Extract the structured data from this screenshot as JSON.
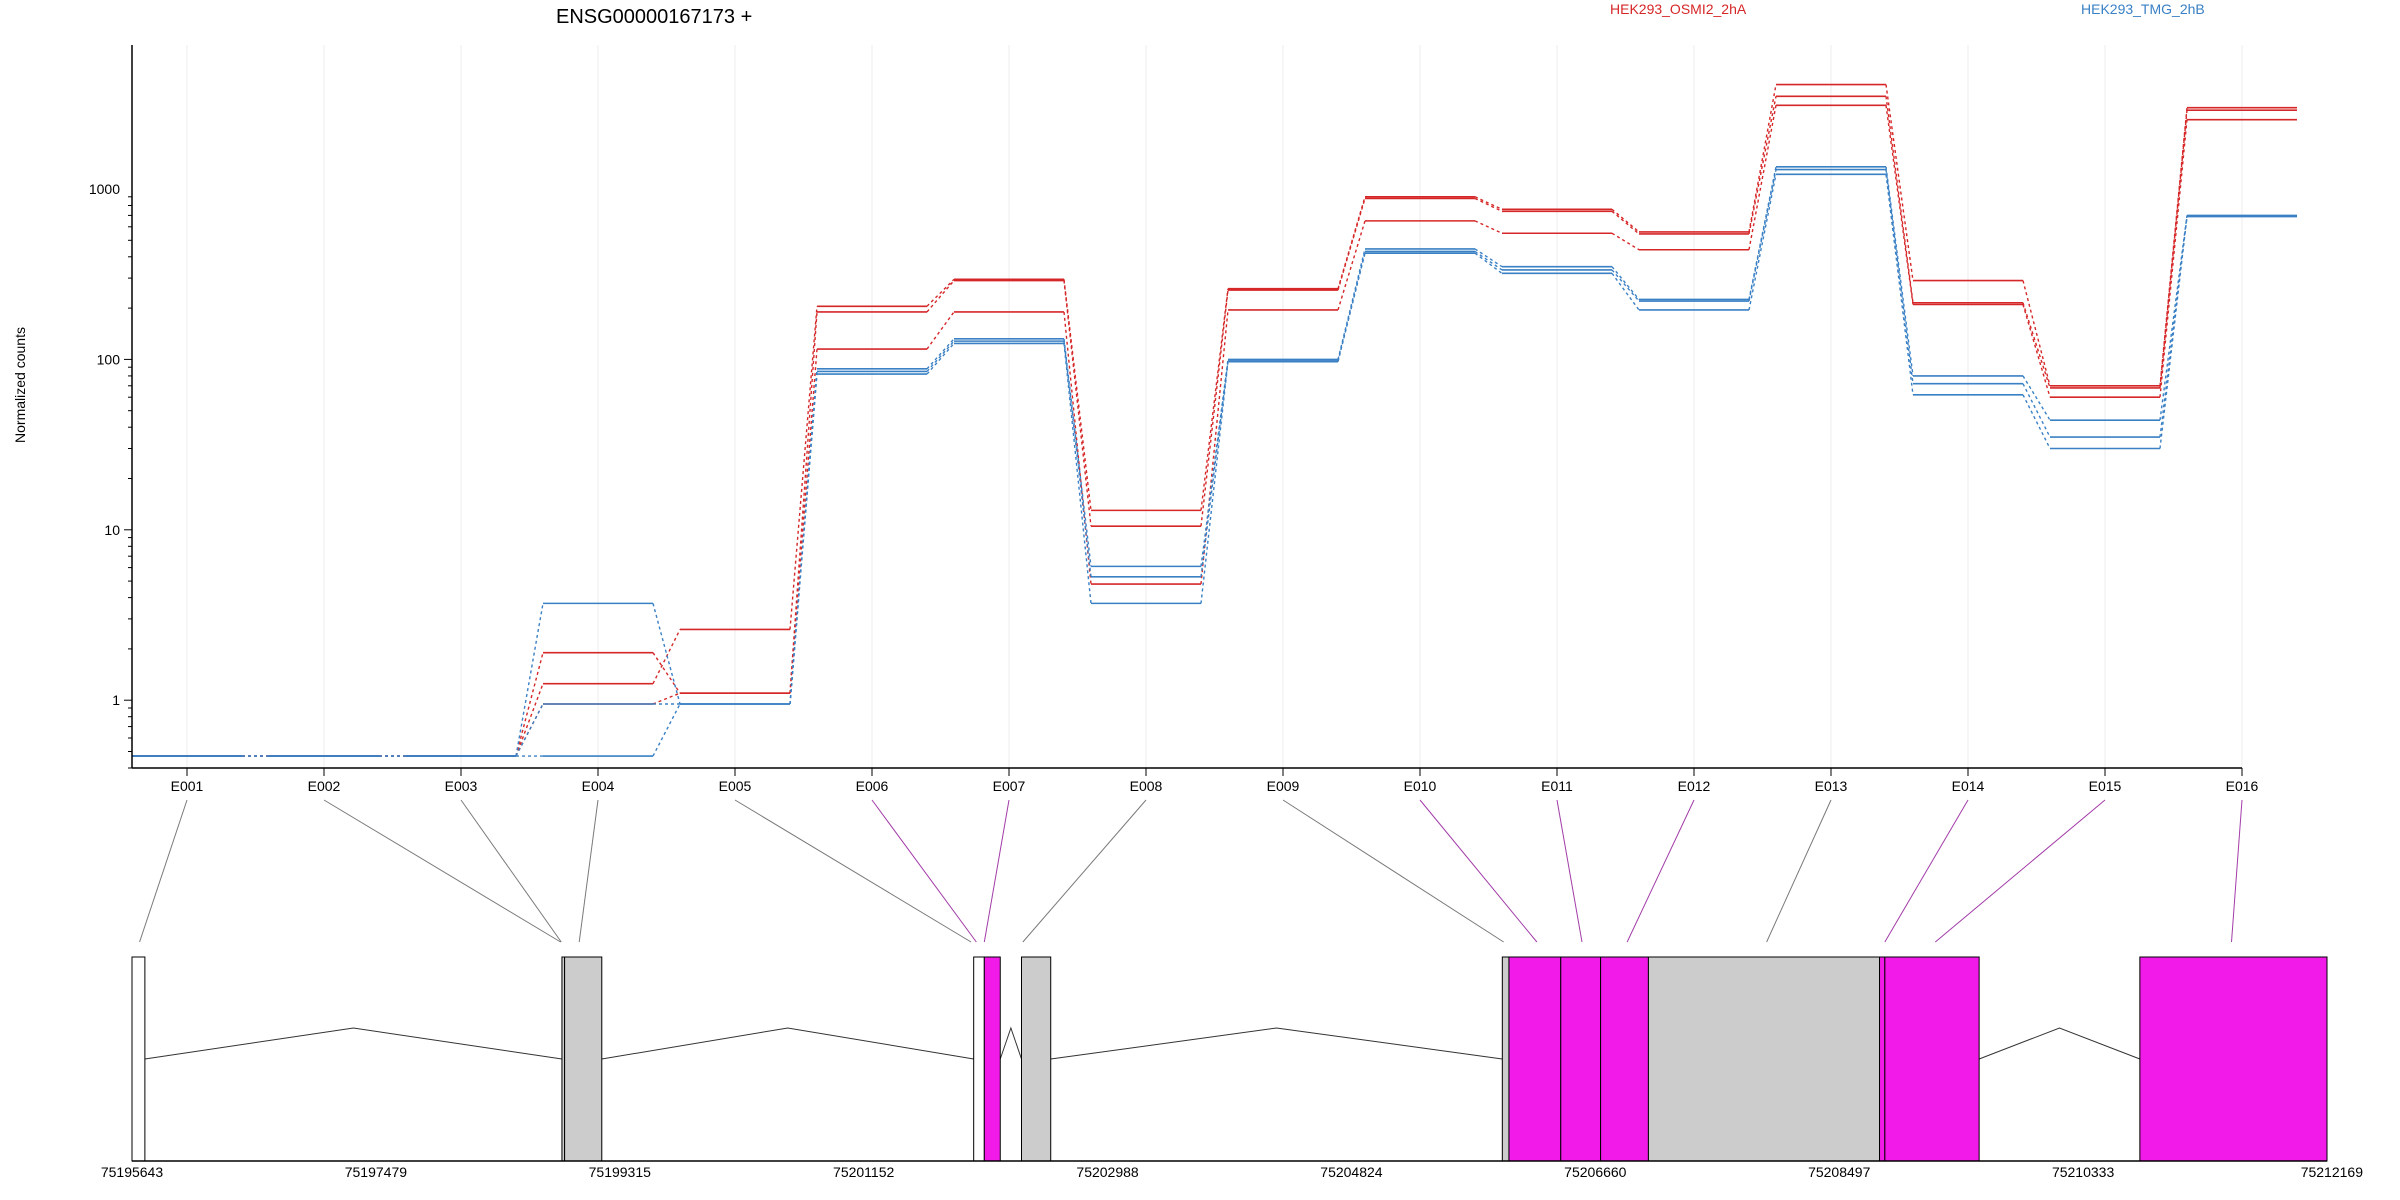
{
  "chart_data": {
    "type": "line",
    "title": "ENSG00000167173 +",
    "ylabel": "Normalized counts",
    "yscale": "log",
    "yticks": [
      {
        "value": 1,
        "label": "1"
      },
      {
        "value": 10,
        "label": "10"
      },
      {
        "value": 100,
        "label": "100"
      },
      {
        "value": 1000,
        "label": "1000"
      }
    ],
    "floor_value": 0.47,
    "categories": [
      "E001",
      "E002",
      "E003",
      "E004",
      "E005",
      "E006",
      "E007",
      "E008",
      "E009",
      "E010",
      "E011",
      "E012",
      "E013",
      "E014",
      "E015",
      "E016"
    ],
    "legend": [
      {
        "name": "HEK293_OSMI2_2hA",
        "color": "#d62728"
      },
      {
        "name": "HEK293_TMG_2hB",
        "color": "#3a80c4"
      }
    ],
    "series": [
      {
        "group": "HEK293_OSMI2_2hA",
        "values": [
          0.47,
          0.47,
          0.47,
          1.25,
          2.6,
          205,
          295,
          13,
          260,
          900,
          760,
          560,
          4100,
          290,
          70,
          3000
        ]
      },
      {
        "group": "HEK293_OSMI2_2hA",
        "values": [
          0.47,
          0.47,
          0.47,
          1.9,
          1.1,
          190,
          290,
          10.5,
          255,
          880,
          740,
          545,
          3500,
          215,
          68,
          2900
        ]
      },
      {
        "group": "HEK293_OSMI2_2hA",
        "values": [
          0.47,
          0.47,
          0.47,
          0.95,
          1.1,
          115,
          190,
          4.8,
          195,
          650,
          550,
          440,
          3100,
          210,
          60,
          2550
        ]
      },
      {
        "group": "HEK293_TMG_2hB",
        "values": [
          0.47,
          0.47,
          0.47,
          3.7,
          0.95,
          88,
          132,
          6.1,
          100,
          445,
          350,
          225,
          1350,
          80,
          44,
          700
        ]
      },
      {
        "group": "HEK293_TMG_2hB",
        "values": [
          0.47,
          0.47,
          0.47,
          0.95,
          0.95,
          85,
          128,
          5.3,
          98,
          430,
          335,
          220,
          1300,
          72,
          35,
          690
        ]
      },
      {
        "group": "HEK293_TMG_2hB",
        "values": [
          0.47,
          0.47,
          0.47,
          0.47,
          0.95,
          82,
          124,
          3.7,
          97,
          420,
          320,
          195,
          1220,
          62,
          30,
          690
        ]
      }
    ],
    "gene_model": {
      "coordinate_labels": [
        "75195643",
        "75197479",
        "75199315",
        "75201152",
        "75202988",
        "75204824",
        "75206660",
        "75208497",
        "75210333",
        "75212169"
      ],
      "range": [
        75195643,
        75212169
      ],
      "exons": [
        {
          "start": 75195643,
          "end": 75195740,
          "fill": "#ffffff"
        },
        {
          "start": 75198880,
          "end": 75198900,
          "fill": "#cccccc"
        },
        {
          "start": 75198900,
          "end": 75199180,
          "fill": "#cccccc"
        },
        {
          "start": 75201980,
          "end": 75202060,
          "fill": "#ffffff"
        },
        {
          "start": 75202060,
          "end": 75202180,
          "fill": "#f21ae8"
        },
        {
          "start": 75202340,
          "end": 75202560,
          "fill": "#cccccc"
        },
        {
          "start": 75205960,
          "end": 75206010,
          "fill": "#cccccc"
        },
        {
          "start": 75206010,
          "end": 75206400,
          "fill": "#f21ae8"
        },
        {
          "start": 75206400,
          "end": 75206700,
          "fill": "#f21ae8"
        },
        {
          "start": 75206700,
          "end": 75207060,
          "fill": "#f21ae8"
        },
        {
          "start": 75207060,
          "end": 75208800,
          "fill": "#cccccc"
        },
        {
          "start": 75208800,
          "end": 75208840,
          "fill": "#f21ae8"
        },
        {
          "start": 75208840,
          "end": 75209550,
          "fill": "#f21ae8"
        },
        {
          "start": 75210760,
          "end": 75212169,
          "fill": "#f21ae8"
        }
      ],
      "introns": [
        [
          75195740,
          75198880
        ],
        [
          75199180,
          75201980
        ],
        [
          75202180,
          75202340
        ],
        [
          75202560,
          75205960
        ],
        [
          75209550,
          75210760
        ]
      ],
      "exon_links": [
        {
          "position": 75195700,
          "highlight": false
        },
        {
          "position": 75198870,
          "highlight": false
        },
        {
          "position": 75198875,
          "highlight": false
        },
        {
          "position": 75199010,
          "highlight": false
        },
        {
          "position": 75201960,
          "highlight": false
        },
        {
          "position": 75202000,
          "highlight": true
        },
        {
          "position": 75202060,
          "highlight": true
        },
        {
          "position": 75202350,
          "highlight": false
        },
        {
          "position": 75205970,
          "highlight": false
        },
        {
          "position": 75206220,
          "highlight": true
        },
        {
          "position": 75206560,
          "highlight": true
        },
        {
          "position": 75206900,
          "highlight": true
        },
        {
          "position": 75207950,
          "highlight": false
        },
        {
          "position": 75208840,
          "highlight": true
        },
        {
          "position": 75209220,
          "highlight": true
        },
        {
          "position": 75211450,
          "highlight": true
        }
      ]
    }
  }
}
